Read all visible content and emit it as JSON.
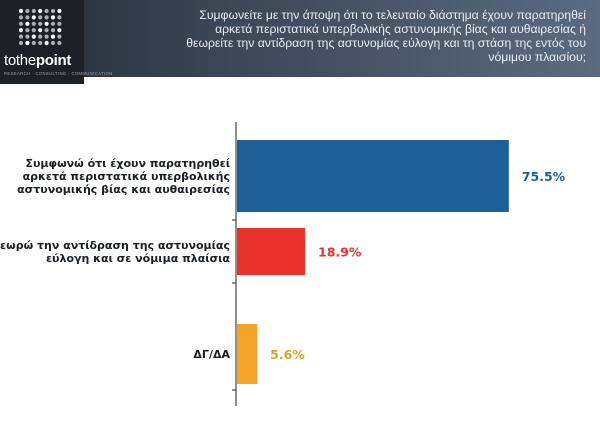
{
  "header": {
    "question": "Συμφωνείτε με την άποψη ότι το τελευταίο διάστημα έχουν παρατηρηθεί αρκετά περιστατικά υπερβολικής αστυνομικής βίας και αυθαιρεσίας ή θεωρείτε την αντίδραση της αστυνομίας εύλογη και τη στάση της εντός του νόμιμου πλαισίου;",
    "logo": {
      "part1": "tothe",
      "part2": "point",
      "tagline": "RESEARCH · CONSULTING · COMMUNICATION"
    }
  },
  "colors": {
    "header_bg": "#3a4555",
    "agree": "#1f5f99",
    "reasonable": "#e8322b",
    "dk": "#f3a426",
    "axis": "#222222"
  },
  "chart_data": {
    "type": "bar",
    "orientation": "horizontal",
    "categories": [
      [
        "Συμφωνώ ότι έχουν παρατηρηθεί",
        "αρκετά περιστατικά υπερβολικής",
        "αστυνομικής βίας και αυθαιρεσίας"
      ],
      [
        "Θεωρώ την αντίδραση της αστυνομίας",
        "εύλογη και σε νόμιμα πλαίσια"
      ],
      [
        "ΔΓ/ΔΑ"
      ]
    ],
    "values": [
      75.5,
      18.9,
      5.6
    ],
    "value_labels": [
      "75.5%",
      "18.9%",
      "5.6%"
    ],
    "bar_colors": [
      "#1f5f99",
      "#e8322b",
      "#f3a426"
    ],
    "label_colors": [
      "#1f5f99",
      "#e8322b",
      "#e0a030"
    ],
    "xlim": [
      0,
      100
    ],
    "grid": false,
    "legend": "none"
  }
}
